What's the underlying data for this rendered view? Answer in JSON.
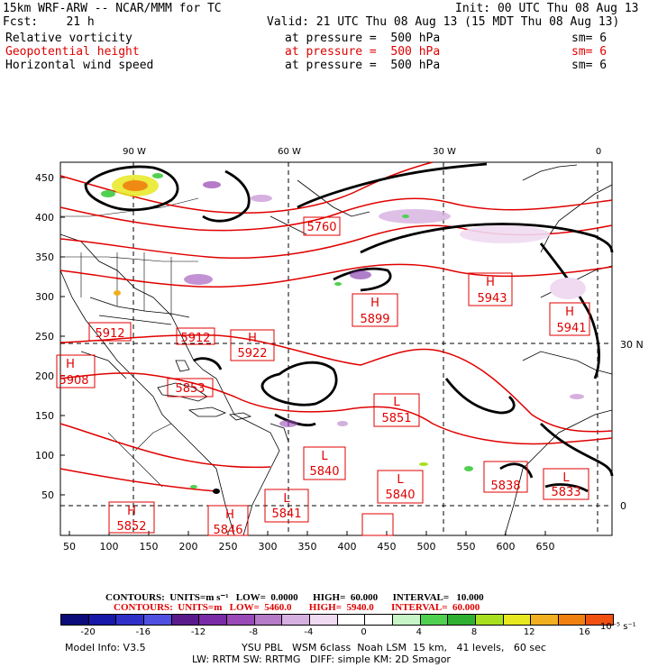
{
  "header": {
    "model": "15km WRF-ARW -- NCAR/MMM for TC",
    "init": "Init: 00 UTC Thu 08 Aug 13",
    "fcst": "Fcst:    21 h",
    "valid": "Valid: 21 UTC Thu 08 Aug 13 (15 MDT Thu 08 Aug 13)",
    "fields": [
      {
        "name": "Relative vorticity",
        "level": "at pressure =  500 hPa",
        "sm": "sm= 6",
        "color": "#000000"
      },
      {
        "name": "Geopotential height",
        "level": "at pressure =  500 hPa",
        "sm": "sm= 6",
        "color": "#e00000"
      },
      {
        "name": "Horizontal wind speed",
        "level": "at pressure =  500 hPa",
        "sm": "sm= 6",
        "color": "#000000"
      }
    ]
  },
  "map": {
    "y_ticks": [
      "450",
      "400",
      "350",
      "300",
      "250",
      "200",
      "150",
      "100",
      "50"
    ],
    "x_ticks": [
      "50",
      "100",
      "150",
      "200",
      "250",
      "300",
      "350",
      "400",
      "450",
      "500",
      "550",
      "600",
      "650"
    ],
    "top_lon_labels": [
      "90 W",
      "60 W",
      "30 W",
      "0"
    ],
    "right_lat_labels": [
      "30 N",
      "0"
    ],
    "highs": [
      {
        "label": "H",
        "value": "5912"
      },
      {
        "label": "",
        "value": "5912"
      },
      {
        "label": "H",
        "value": "5922"
      },
      {
        "label": "H",
        "value": "5908"
      },
      {
        "label": "H",
        "value": "5899"
      },
      {
        "label": "H",
        "value": "5943"
      },
      {
        "label": "H",
        "value": "5941"
      },
      {
        "label": "H",
        "value": "5852"
      },
      {
        "label": "H",
        "value": "5846"
      }
    ],
    "lows": [
      {
        "label": "",
        "value": "5760"
      },
      {
        "label": "",
        "value": "5853"
      },
      {
        "label": "L",
        "value": "5851"
      },
      {
        "label": "L",
        "value": "5840"
      },
      {
        "label": "L",
        "value": "5840"
      },
      {
        "label": "L",
        "value": "5841"
      },
      {
        "label": "",
        "value": "5838"
      },
      {
        "label": "L",
        "value": "5833"
      }
    ]
  },
  "contours": {
    "wind": "CONTOURS:  UNITS=m s⁻¹   LOW=  0.0000      HIGH=  60.000      INTERVAL=   10.000",
    "height": "CONTOURS:  UNITS=m   LOW=  5460.0       HIGH=  5940.0       INTERVAL=  60.000"
  },
  "colorbar": {
    "colors": [
      "#0b0b7a",
      "#1818a8",
      "#3030c8",
      "#5050e0",
      "#5a1a8c",
      "#7a2aa6",
      "#9a4ab8",
      "#b57ac8",
      "#d6b0e0",
      "#efdaf2",
      "#ffffff",
      "#ffffff",
      "#c8f5c8",
      "#50d050",
      "#30b030",
      "#a8e020",
      "#e8e820",
      "#f0b020",
      "#f08010",
      "#f05010"
    ],
    "labels": [
      "-20",
      "-16",
      "-12",
      "-8",
      "-4",
      "0",
      "4",
      "8",
      "12",
      "16"
    ],
    "units": "10⁻⁵ s⁻¹"
  },
  "footer": {
    "model_info": "Model Info: V3.5",
    "line1": "YSU PBL   WSM 6class  Noah LSM  15 km,   41 levels,   60 sec",
    "line2": "LW: RRTM SW: RRTMG   DIFF: simple KM: 2D Smagor"
  }
}
